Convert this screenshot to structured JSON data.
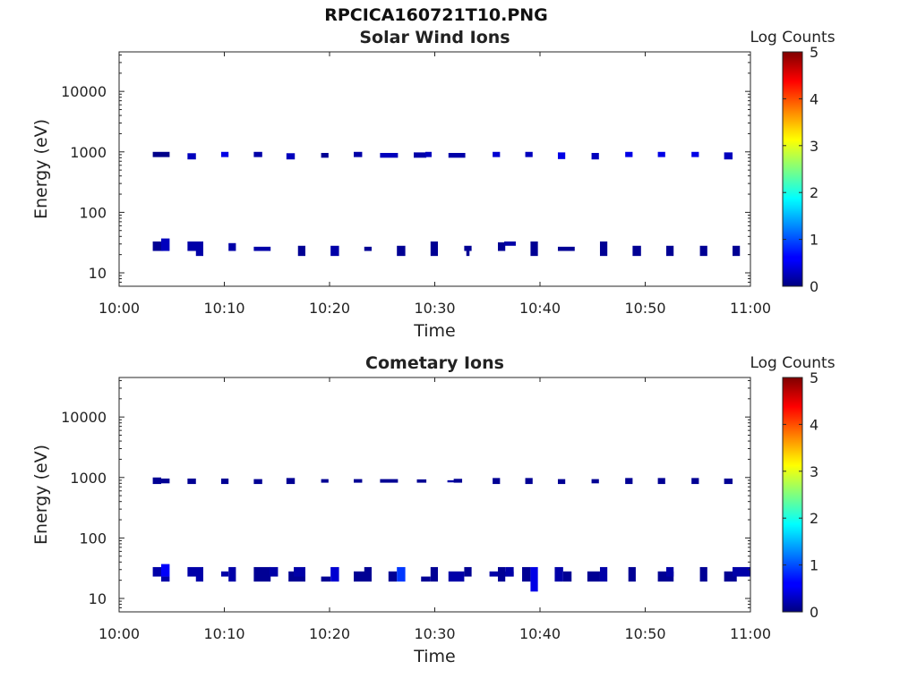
{
  "figure": {
    "title": "RPCICA160721T10.PNG"
  },
  "chart_data": [
    {
      "type": "heatmap",
      "title": "Solar Wind Ions",
      "xlabel": "Time",
      "ylabel": "Energy (eV)",
      "x_ticks": [
        "10:00",
        "10:10",
        "10:20",
        "10:30",
        "10:40",
        "10:50",
        "11:00"
      ],
      "xlim_minutes": [
        0,
        60
      ],
      "y_ticks": [
        "10",
        "100",
        "1000",
        "10000"
      ],
      "y_scale": "log",
      "ylim": [
        6,
        45000
      ],
      "colorbar": {
        "label": "Log Counts",
        "ticks": [
          "0",
          "1",
          "2",
          "3",
          "4",
          "5"
        ],
        "range": [
          0,
          5
        ],
        "colormap": "jet"
      },
      "cells": [
        [
          3.2,
          4.8,
          820,
          1000,
          0.05
        ],
        [
          6.5,
          7.3,
          750,
          950,
          0.3
        ],
        [
          9.7,
          10.4,
          820,
          1000,
          0.5
        ],
        [
          12.8,
          13.6,
          820,
          1000,
          0.2
        ],
        [
          15.9,
          16.7,
          750,
          950,
          0.3
        ],
        [
          19.2,
          19.9,
          800,
          960,
          0.1
        ],
        [
          22.3,
          23.1,
          820,
          1000,
          0.2
        ],
        [
          24.8,
          26.5,
          800,
          960,
          0.3
        ],
        [
          28.0,
          29.2,
          800,
          980,
          0.2
        ],
        [
          29.1,
          29.7,
          820,
          1000,
          0.3
        ],
        [
          31.3,
          32.9,
          800,
          960,
          0.2
        ],
        [
          35.5,
          36.2,
          820,
          1000,
          0.4
        ],
        [
          38.6,
          39.3,
          820,
          1000,
          0.3
        ],
        [
          41.7,
          42.4,
          760,
          980,
          0.5
        ],
        [
          44.9,
          45.6,
          750,
          960,
          0.3
        ],
        [
          48.1,
          48.8,
          820,
          1000,
          0.5
        ],
        [
          51.2,
          51.9,
          820,
          1000,
          0.5
        ],
        [
          54.4,
          55.1,
          820,
          1000,
          0.5
        ],
        [
          57.5,
          58.3,
          750,
          980,
          0.3
        ],
        [
          3.2,
          4.2,
          23,
          33,
          0.1
        ],
        [
          4.0,
          4.8,
          23,
          37,
          0.3
        ],
        [
          6.5,
          8.0,
          23,
          33,
          0.2
        ],
        [
          7.3,
          8.0,
          19,
          26,
          0.2
        ],
        [
          10.4,
          11.1,
          23,
          31,
          0.2
        ],
        [
          12.8,
          14.4,
          23,
          27,
          0.2
        ],
        [
          17.0,
          17.7,
          19,
          28,
          0.1
        ],
        [
          20.1,
          20.9,
          19,
          28,
          0.2
        ],
        [
          23.3,
          24.0,
          23,
          27,
          0.1
        ],
        [
          26.4,
          27.2,
          19,
          28,
          0.1
        ],
        [
          29.6,
          30.3,
          19,
          33,
          0.1
        ],
        [
          32.8,
          33.5,
          23,
          28,
          0.1
        ],
        [
          33.0,
          33.3,
          19,
          23,
          0.1
        ],
        [
          36.0,
          36.7,
          23,
          32,
          0.1
        ],
        [
          36.6,
          37.7,
          28,
          33,
          0.2
        ],
        [
          39.1,
          39.8,
          19,
          33,
          0.1
        ],
        [
          41.7,
          43.3,
          23,
          27,
          0.1
        ],
        [
          45.7,
          46.4,
          19,
          33,
          0.1
        ],
        [
          48.8,
          49.6,
          19,
          28,
          0.1
        ],
        [
          52.0,
          52.7,
          19,
          28,
          0.1
        ],
        [
          55.2,
          55.9,
          19,
          28,
          0.1
        ],
        [
          58.3,
          59.0,
          19,
          28,
          0.1
        ]
      ]
    },
    {
      "type": "heatmap",
      "title": "Cometary Ions",
      "xlabel": "Time",
      "ylabel": "Energy (eV)",
      "x_ticks": [
        "10:00",
        "10:10",
        "10:20",
        "10:30",
        "10:40",
        "10:50",
        "11:00"
      ],
      "xlim_minutes": [
        0,
        60
      ],
      "y_ticks": [
        "10",
        "100",
        "1000",
        "10000"
      ],
      "y_scale": "log",
      "ylim": [
        6,
        45000
      ],
      "colorbar": {
        "label": "Log Counts",
        "ticks": [
          "0",
          "1",
          "2",
          "3",
          "4",
          "5"
        ],
        "range": [
          0,
          5
        ],
        "colormap": "jet"
      },
      "cells": [
        [
          3.2,
          4.0,
          780,
          1000,
          0.1
        ],
        [
          4.0,
          4.8,
          800,
          960,
          0.1
        ],
        [
          6.5,
          7.3,
          780,
          960,
          0.1
        ],
        [
          9.7,
          10.4,
          780,
          960,
          0.1
        ],
        [
          12.8,
          13.6,
          780,
          940,
          0.1
        ],
        [
          15.9,
          16.7,
          780,
          980,
          0.1
        ],
        [
          19.2,
          19.9,
          820,
          940,
          0.1
        ],
        [
          22.3,
          23.1,
          820,
          940,
          0.1
        ],
        [
          24.8,
          26.5,
          820,
          940,
          0.1
        ],
        [
          28.3,
          29.2,
          820,
          930,
          0.1
        ],
        [
          31.2,
          32.0,
          830,
          900,
          0.2
        ],
        [
          31.8,
          32.6,
          820,
          950,
          0.1
        ],
        [
          35.5,
          36.2,
          780,
          980,
          0.1
        ],
        [
          38.6,
          39.3,
          780,
          980,
          0.1
        ],
        [
          41.7,
          42.4,
          780,
          940,
          0.1
        ],
        [
          44.9,
          45.6,
          800,
          940,
          0.1
        ],
        [
          48.1,
          48.8,
          780,
          980,
          0.1
        ],
        [
          51.2,
          51.9,
          780,
          980,
          0.1
        ],
        [
          54.4,
          55.1,
          780,
          980,
          0.1
        ],
        [
          57.5,
          58.3,
          780,
          960,
          0.1
        ],
        [
          3.2,
          4.0,
          23,
          33,
          0.2
        ],
        [
          4.0,
          4.8,
          23,
          37,
          0.6
        ],
        [
          4.0,
          4.8,
          19,
          23,
          0.2
        ],
        [
          6.5,
          8.0,
          23,
          33,
          0.2
        ],
        [
          7.3,
          8.0,
          19,
          26,
          0.2
        ],
        [
          9.7,
          10.4,
          23,
          28,
          0.2
        ],
        [
          10.4,
          11.1,
          19,
          33,
          0.2
        ],
        [
          12.8,
          14.4,
          19,
          33,
          0.1
        ],
        [
          14.3,
          15.1,
          23,
          33,
          0.2
        ],
        [
          16.1,
          17.7,
          19,
          28,
          0.1
        ],
        [
          16.6,
          17.7,
          23,
          33,
          0.2
        ],
        [
          19.2,
          20.1,
          19,
          23,
          0.1
        ],
        [
          20.1,
          20.9,
          19,
          33,
          0.4
        ],
        [
          22.3,
          24.0,
          19,
          28,
          0.1
        ],
        [
          23.3,
          24.0,
          23,
          33,
          0.1
        ],
        [
          25.6,
          26.4,
          19,
          28,
          0.1
        ],
        [
          26.4,
          27.2,
          19,
          33,
          0.9
        ],
        [
          28.7,
          29.6,
          19,
          23,
          0.1
        ],
        [
          29.6,
          30.3,
          19,
          33,
          0.1
        ],
        [
          31.3,
          32.8,
          19,
          28,
          0.2
        ],
        [
          32.8,
          33.5,
          23,
          33,
          0.1
        ],
        [
          35.2,
          37.5,
          23,
          28,
          0.2
        ],
        [
          36.0,
          36.7,
          19,
          33,
          0.1
        ],
        [
          36.7,
          37.5,
          23,
          33,
          0.2
        ],
        [
          38.3,
          39.1,
          19,
          33,
          0.1
        ],
        [
          39.1,
          39.8,
          13,
          33,
          0.5
        ],
        [
          41.4,
          42.2,
          19,
          33,
          0.2
        ],
        [
          42.2,
          43.0,
          19,
          28,
          0.1
        ],
        [
          44.5,
          45.7,
          19,
          28,
          0.1
        ],
        [
          45.7,
          46.4,
          19,
          33,
          0.2
        ],
        [
          48.4,
          49.1,
          19,
          33,
          0.1
        ],
        [
          51.2,
          52.7,
          19,
          28,
          0.1
        ],
        [
          52.0,
          52.7,
          23,
          33,
          0.2
        ],
        [
          55.2,
          55.9,
          19,
          33,
          0.1
        ],
        [
          57.5,
          58.7,
          19,
          28,
          0.1
        ],
        [
          58.3,
          60.0,
          23,
          33,
          0.2
        ]
      ]
    }
  ]
}
